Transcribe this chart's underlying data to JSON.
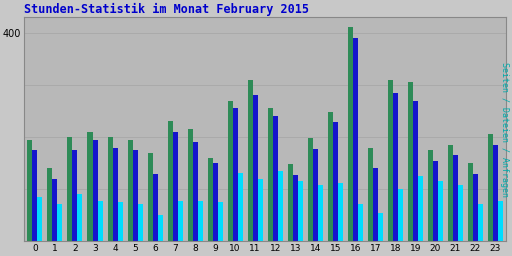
{
  "title": "Stunden-Statistik im Monat February 2015",
  "ylabel": "Seiten / Dateien / Anfragen",
  "xlabel_ticks": [
    0,
    1,
    2,
    3,
    4,
    5,
    6,
    7,
    8,
    9,
    10,
    11,
    12,
    13,
    14,
    15,
    16,
    17,
    18,
    19,
    20,
    21,
    22,
    23
  ],
  "ylim": [
    0,
    430
  ],
  "yticks": [
    400
  ],
  "background_color": "#c8c8c8",
  "plot_bg_color": "#b8b8b8",
  "title_color": "#0000cc",
  "ylabel_color": "#00aaaa",
  "green_color": "#2e8b57",
  "blue_color": "#1515cc",
  "cyan_color": "#00ddff",
  "green_values": [
    195,
    140,
    200,
    210,
    200,
    195,
    170,
    230,
    215,
    160,
    270,
    310,
    255,
    148,
    198,
    248,
    410,
    180,
    310,
    305,
    175,
    185,
    150,
    205
  ],
  "blue_values": [
    175,
    120,
    175,
    195,
    180,
    175,
    130,
    210,
    190,
    150,
    255,
    280,
    240,
    128,
    178,
    228,
    390,
    140,
    285,
    270,
    155,
    165,
    130,
    185
  ],
  "cyan_values": [
    85,
    72,
    90,
    78,
    75,
    72,
    50,
    78,
    78,
    75,
    132,
    120,
    135,
    115,
    108,
    112,
    72,
    55,
    100,
    125,
    115,
    108,
    72,
    78
  ]
}
